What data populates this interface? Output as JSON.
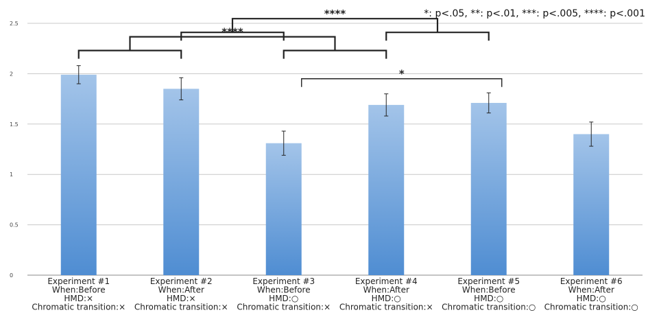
{
  "chart_data": {
    "type": "bar",
    "title": "",
    "xlabel": "",
    "ylabel": "",
    "ylim": [
      0,
      2.5
    ],
    "yticks": [
      "0",
      "0.5",
      "1",
      "1.5",
      "2",
      "2.5"
    ],
    "grid": true,
    "categories": [
      [
        "Experiment #1",
        "When:Before",
        "HMD:×",
        "Chromatic transition:×"
      ],
      [
        "Experiment #2",
        "When:After",
        "HMD:×",
        "Chromatic transition:×"
      ],
      [
        "Experiment #3",
        "When:Before",
        "HMD:○",
        "Chromatic transition:×"
      ],
      [
        "Experiment #4",
        "When:After",
        "HMD:○",
        "Chromatic transition:×"
      ],
      [
        "Experiment #5",
        "When:Before",
        "HMD:○",
        "Chromatic transition:○"
      ],
      [
        "Experiment #6",
        "When:After",
        "HMD:○",
        "Chromatic transition:○"
      ]
    ],
    "values": [
      1.99,
      1.85,
      1.31,
      1.69,
      1.71,
      1.4
    ],
    "errors": [
      0.09,
      0.11,
      0.12,
      0.11,
      0.1,
      0.12
    ],
    "significance_note": "*: p<.05, **: p<.01, ***: p<.005, ****: p<.001",
    "brackets": [
      {
        "label": "****",
        "from": 0,
        "to": 2,
        "level": 2.23
      },
      {
        "label": "****",
        "from": 1,
        "to": 3,
        "level": 2.41
      },
      {
        "label": "*",
        "from": 2,
        "to": 4,
        "level": 1.95
      }
    ],
    "bar_color_top": "#a3c4e9",
    "bar_color_bottom": "#4f8dd2"
  }
}
